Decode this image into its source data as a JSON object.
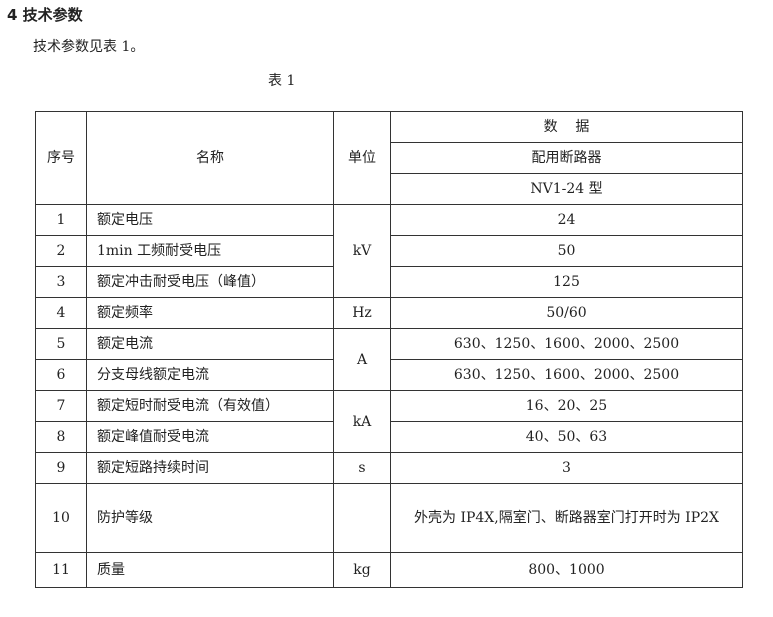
{
  "heading": "4  技术参数",
  "intro": "技术参数见表 1。",
  "caption": "表 1",
  "table": {
    "headers": {
      "index": "序号",
      "name": "名称",
      "unit": "单位",
      "data": "数    据",
      "sub1": "配用断路器",
      "sub2": "NV1-24 型"
    },
    "rows": [
      {
        "no": "1",
        "name": "额定电压",
        "unit": "kV",
        "value": "24"
      },
      {
        "no": "2",
        "name": "1min 工频耐受电压",
        "value": "50"
      },
      {
        "no": "3",
        "name": "额定冲击耐受电压（峰值）",
        "value": "125"
      },
      {
        "no": "4",
        "name": "额定频率",
        "unit": "Hz",
        "value": "50/60"
      },
      {
        "no": "5",
        "name": "额定电流",
        "unit": "A",
        "value": "630、1250、1600、2000、2500"
      },
      {
        "no": "6",
        "name": "分支母线额定电流",
        "value": "630、1250、1600、2000、2500"
      },
      {
        "no": "7",
        "name": "额定短时耐受电流（有效值）",
        "unit": "kA",
        "value": "16、20、25"
      },
      {
        "no": "8",
        "name": "额定峰值耐受电流",
        "value": "40、50、63"
      },
      {
        "no": "9",
        "name": "额定短路持续时间",
        "unit": "s",
        "value": "3"
      },
      {
        "no": "10",
        "name": "防护等级",
        "unit": "",
        "value": "外壳为 IP4X,隔室门、断路器室门打开时为 IP2X"
      },
      {
        "no": "11",
        "name": "质量",
        "unit": "kg",
        "value": "800、1000"
      }
    ]
  }
}
